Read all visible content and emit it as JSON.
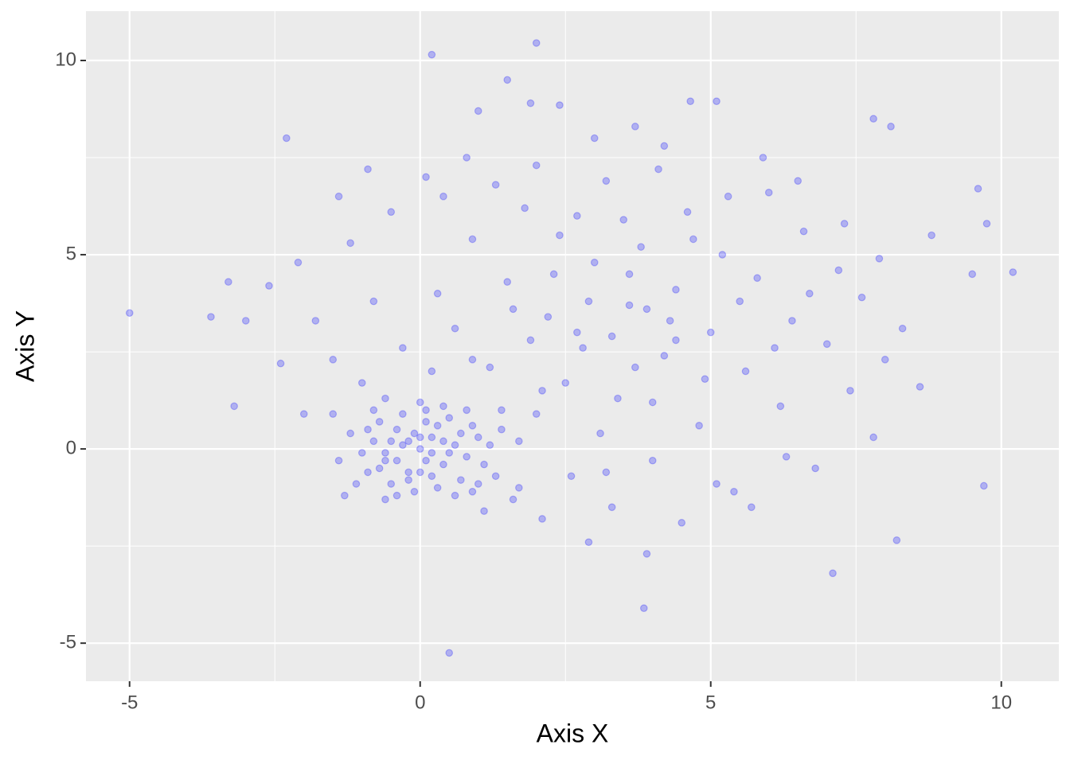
{
  "chart_data": {
    "type": "scatter",
    "xlabel": "Axis X",
    "ylabel": "Axis Y",
    "color": "#0000ff",
    "alpha": 0.25,
    "grid": true,
    "xlim": [
      -5.75,
      10.99
    ],
    "ylim": [
      -5.98,
      11.27
    ],
    "xticks": [
      -5,
      0,
      5,
      10
    ],
    "yticks": [
      -5,
      0,
      5,
      10
    ],
    "xminor": [
      -2.5,
      2.5,
      7.5
    ],
    "yminor": [
      -2.5,
      2.5,
      7.5
    ],
    "x": [
      -5,
      2,
      0.2,
      1.5,
      -2.3,
      10.2,
      9.7,
      0.5,
      3.85,
      9.5,
      9.6,
      9.75,
      7.8,
      8.1,
      -3.2,
      -3.6,
      -3.3,
      -2.6,
      -3,
      -2.4,
      7.1,
      8.2,
      1.9,
      5.1,
      4.65,
      2.4,
      -0.8,
      -0.6,
      -0.4,
      -0.2,
      0,
      0.2,
      0.4,
      0.6,
      0.8,
      1.0,
      -1.0,
      -0.7,
      -0.3,
      0.1,
      0.5,
      0.9,
      -0.9,
      -0.5,
      -0.1,
      0.3,
      0.7,
      1.1,
      -0.3,
      0.1,
      -0.5,
      0.3,
      -0.1,
      0.5,
      -0.6,
      0,
      0.2,
      -0.2,
      0.4,
      -0.4,
      0,
      -1.2,
      1.2,
      -1.1,
      1.3,
      0.8,
      -0.8,
      0.6,
      -0.6,
      -1.4,
      1.4,
      0.1,
      -0.2,
      0.7,
      -0.7,
      0.2,
      -1.5,
      1.6,
      -1.3,
      1.7,
      0,
      0.9,
      -0.9,
      0.4,
      -0.4,
      1.0,
      1.2,
      1.5,
      1.8,
      2.0,
      2.2,
      2.4,
      2.6,
      2.8,
      3.0,
      3.2,
      3.4,
      3.6,
      3.8,
      4.0,
      4.2,
      4.4,
      4.6,
      4.8,
      5.0,
      5.2,
      5.4,
      5.6,
      5.8,
      6.0,
      6.2,
      6.4,
      6.6,
      6.8,
      7.0,
      7.2,
      7.4,
      7.6,
      7.8,
      8.0,
      0.6,
      0.9,
      0.3,
      -0.3,
      -0.8,
      -1.2,
      -0.5,
      0.1,
      0.8,
      1.4,
      1.7,
      2.1,
      2.9,
      3.3,
      3.9,
      4.5,
      5.1,
      5.7,
      6.3,
      1.1,
      1.9,
      2.5,
      3.1,
      3.7,
      4.3,
      4.9,
      5.5,
      6.1,
      6.7,
      2.3,
      2.7,
      3.5,
      4.1,
      4.7,
      5.3,
      5.9,
      1.3,
      2.0,
      3.0,
      3.7,
      4.2,
      6.5,
      7.3,
      7.9,
      8.3,
      8.6,
      8.8,
      -1.5,
      -2.0,
      -1.8,
      -1.0,
      -2.1,
      -1.4,
      -0.9,
      0.4,
      1.0,
      2.7,
      3.3,
      3.9,
      4.4,
      2.9,
      3.6,
      4.0,
      3.2,
      2.1,
      1.6,
      0.9,
      0.2,
      -0.6
    ],
    "y": [
      3.5,
      10.45,
      10.15,
      9.5,
      8,
      4.55,
      -0.95,
      -5.25,
      -4.1,
      4.5,
      6.7,
      5.8,
      8.5,
      8.3,
      1.1,
      3.4,
      4.3,
      4.2,
      3.3,
      2.2,
      -3.2,
      -2.35,
      8.9,
      8.95,
      8.95,
      8.85,
      0.2,
      -0.3,
      0.5,
      -0.6,
      0,
      0.3,
      -0.4,
      0.1,
      -0.2,
      0.3,
      -0.1,
      0.7,
      0.9,
      1.0,
      0.8,
      0.6,
      -0.6,
      -0.9,
      -1.1,
      -1.0,
      -0.8,
      -0.4,
      0.1,
      -0.3,
      0.2,
      0.6,
      0.4,
      -0.1,
      -0.1,
      -0.6,
      -0.1,
      0.2,
      0.2,
      -0.3,
      0.3,
      0.4,
      0.1,
      -0.9,
      -0.7,
      1.0,
      1.0,
      -1.2,
      -1.3,
      -0.3,
      0.5,
      0.7,
      -0.8,
      0.4,
      -0.5,
      -0.7,
      0.9,
      -1.3,
      -1.2,
      0.2,
      1.2,
      -1.1,
      0.5,
      1.1,
      -1.2,
      -0.9,
      2.1,
      4.3,
      6.2,
      0.9,
      3.4,
      5.5,
      -0.7,
      2.6,
      4.8,
      6.9,
      1.3,
      3.7,
      5.2,
      -0.3,
      2.4,
      4.1,
      6.1,
      0.6,
      3.0,
      5.0,
      -1.1,
      2.0,
      4.4,
      6.6,
      1.1,
      3.3,
      5.6,
      -0.5,
      2.7,
      4.6,
      1.5,
      3.9,
      0.3,
      2.3,
      3.1,
      5.4,
      4.0,
      2.6,
      3.8,
      5.3,
      6.1,
      7.0,
      7.5,
      1.0,
      -1.0,
      -1.8,
      -2.4,
      -1.5,
      -2.7,
      -1.9,
      -0.9,
      -1.5,
      -0.2,
      -1.6,
      2.8,
      1.7,
      0.4,
      2.1,
      3.3,
      1.8,
      3.8,
      2.6,
      4.0,
      4.5,
      6.0,
      5.9,
      7.2,
      5.4,
      6.5,
      7.5,
      6.8,
      7.3,
      8.0,
      8.3,
      7.8,
      6.9,
      5.8,
      4.9,
      3.1,
      1.6,
      5.5,
      2.3,
      0.9,
      3.3,
      1.7,
      4.8,
      6.5,
      7.2,
      6.5,
      8.7,
      3.0,
      2.9,
      3.6,
      2.8,
      3.8,
      4.5,
      1.2,
      -0.6,
      1.5,
      3.6,
      2.3,
      2.0,
      1.3
    ]
  }
}
